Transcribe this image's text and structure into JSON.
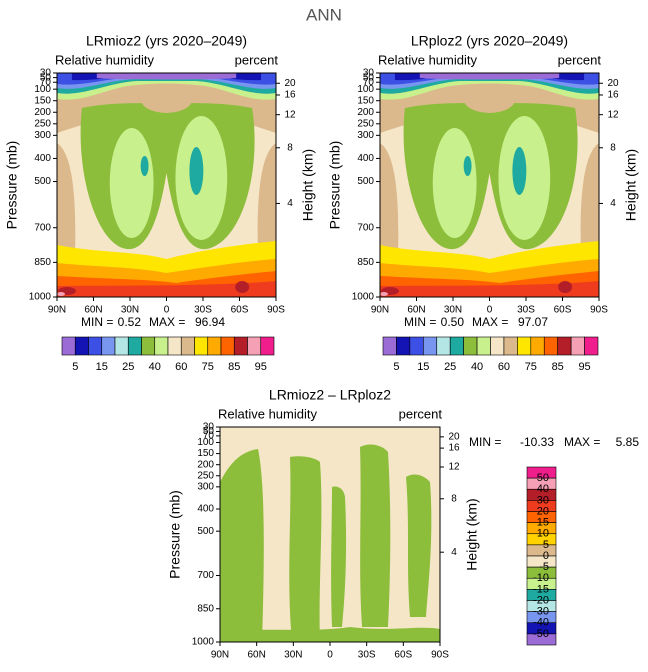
{
  "title": "ANN",
  "chart_data": [
    {
      "type": "contour",
      "title": "LRmioz2 (yrs 2020–2049)",
      "left_label": "Relative humidity",
      "right_label": "percent",
      "ylabel": "Pressure (mb)",
      "y2label": "Height (km)",
      "ylim": [
        1000,
        30
      ],
      "yticks": [
        30,
        50,
        70,
        100,
        150,
        200,
        250,
        300,
        400,
        500,
        700,
        850,
        1000
      ],
      "y2ticks": [
        4,
        8,
        12,
        16,
        20
      ],
      "xlim": [
        90,
        -90
      ],
      "xticks": [
        {
          "value": 90,
          "label": "90N"
        },
        {
          "value": 60,
          "label": "60N"
        },
        {
          "value": 30,
          "label": "30N"
        },
        0,
        {
          "value": -30,
          "label": "30S"
        },
        {
          "value": -60,
          "label": "60S"
        },
        {
          "value": -90,
          "label": "90S"
        }
      ],
      "min_label": "MIN =",
      "min": "0.52",
      "max_label": "MAX =",
      "max": "96.94",
      "colorbar": {
        "colors": [
          "#9b6bd6",
          "#1414b4",
          "#3c50e6",
          "#7896f0",
          "#b4e6e6",
          "#1eaaa0",
          "#8cbe3c",
          "#c8f08c",
          "#f5e6c8",
          "#dcb98c",
          "#ffe600",
          "#ffaa00",
          "#ff6400",
          "#b41e28",
          "#f5a0b4",
          "#f01e8c"
        ],
        "labels": [
          5,
          15,
          25,
          40,
          60,
          75,
          85,
          95
        ]
      }
    },
    {
      "type": "contour",
      "title": "LRploz2 (yrs 2020–2049)",
      "left_label": "Relative humidity",
      "right_label": "percent",
      "ylabel": "Pressure (mb)",
      "y2label": "Height (km)",
      "ylim": [
        1000,
        30
      ],
      "yticks": [
        30,
        50,
        70,
        100,
        150,
        200,
        250,
        300,
        400,
        500,
        700,
        850,
        1000
      ],
      "y2ticks": [
        4,
        8,
        12,
        16,
        20
      ],
      "xlim": [
        90,
        -90
      ],
      "xticks": [
        {
          "value": 90,
          "label": "90N"
        },
        {
          "value": 60,
          "label": "60N"
        },
        {
          "value": 30,
          "label": "30N"
        },
        0,
        {
          "value": -30,
          "label": "30S"
        },
        {
          "value": -60,
          "label": "60S"
        },
        {
          "value": -90,
          "label": "90S"
        }
      ],
      "min_label": "MIN =",
      "min": "0.50",
      "max_label": "MAX =",
      "max": "97.07",
      "colorbar": {
        "colors": [
          "#9b6bd6",
          "#1414b4",
          "#3c50e6",
          "#7896f0",
          "#b4e6e6",
          "#1eaaa0",
          "#8cbe3c",
          "#c8f08c",
          "#f5e6c8",
          "#dcb98c",
          "#ffe600",
          "#ffaa00",
          "#ff6400",
          "#b41e28",
          "#f5a0b4",
          "#f01e8c"
        ],
        "labels": [
          5,
          15,
          25,
          40,
          60,
          75,
          85,
          95
        ]
      }
    },
    {
      "type": "contour",
      "title": "LRmioz2 – LRploz2",
      "left_label": "Relative humidity",
      "right_label": "percent",
      "ylabel": "Pressure (mb)",
      "y2label": "Height (km)",
      "ylim": [
        1000,
        30
      ],
      "yticks": [
        30,
        50,
        70,
        100,
        150,
        200,
        250,
        300,
        400,
        500,
        700,
        850,
        1000
      ],
      "y2ticks": [
        4,
        8,
        12,
        16,
        20
      ],
      "xlim": [
        90,
        -90
      ],
      "xticks": [
        {
          "value": 90,
          "label": "90N"
        },
        {
          "value": 60,
          "label": "60N"
        },
        {
          "value": 30,
          "label": "30N"
        },
        0,
        {
          "value": -30,
          "label": "30S"
        },
        {
          "value": -60,
          "label": "60S"
        },
        {
          "value": -90,
          "label": "90S"
        }
      ],
      "min_label": "MIN =",
      "min": "-10.33",
      "max_label": "MAX =",
      "max": "5.85",
      "colorbar": {
        "colors": [
          "#f01e8c",
          "#f5a0b4",
          "#b41e28",
          "#f03c1e",
          "#ff6400",
          "#ffaa00",
          "#ffd200",
          "#dcb98c",
          "#f5e6c8",
          "#8cbe3c",
          "#c8f08c",
          "#1eaaa0",
          "#b4e6e6",
          "#7896f0",
          "#1414b4",
          "#9b6bd6"
        ],
        "labels": [
          50,
          40,
          30,
          20,
          15,
          10,
          5,
          0,
          -5,
          -10,
          -15,
          -20,
          -30,
          -40,
          -50
        ]
      }
    }
  ]
}
